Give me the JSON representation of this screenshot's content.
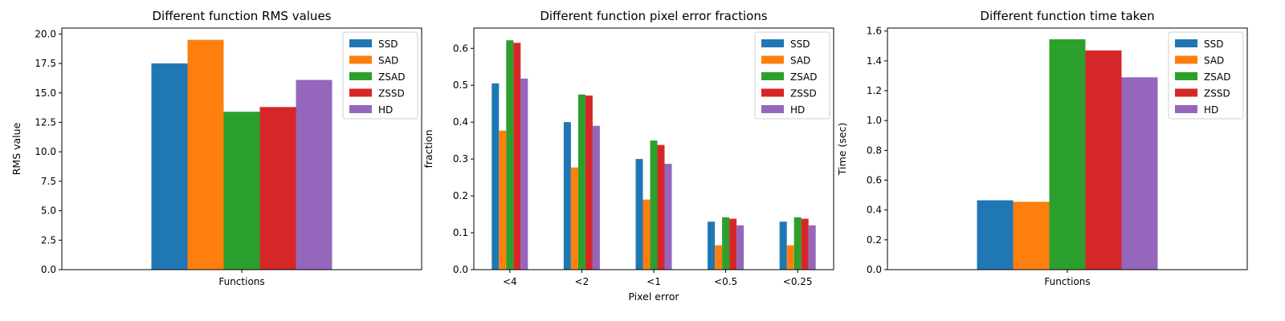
{
  "series_names": [
    "SSD",
    "SAD",
    "ZSAD",
    "ZSSD",
    "HD"
  ],
  "colors": [
    "#1f77b4",
    "#ff7f0e",
    "#2ca02c",
    "#d62728",
    "#9467bd"
  ],
  "chart_data": [
    {
      "type": "bar",
      "title": "Different function RMS values",
      "xlabel": "",
      "ylabel": "RMS value",
      "categories": [
        "Functions"
      ],
      "series": [
        {
          "name": "SSD",
          "values": [
            17.5
          ]
        },
        {
          "name": "SAD",
          "values": [
            19.5
          ]
        },
        {
          "name": "ZSAD",
          "values": [
            13.4
          ]
        },
        {
          "name": "ZSSD",
          "values": [
            13.8
          ]
        },
        {
          "name": "HD",
          "values": [
            16.1
          ]
        }
      ],
      "ylim": [
        0,
        20.5
      ],
      "yticks": [
        "0.0",
        "2.5",
        "5.0",
        "7.5",
        "10.0",
        "12.5",
        "15.0",
        "17.5",
        "20.0"
      ],
      "legend": "top-right"
    },
    {
      "type": "bar",
      "title": "Different function pixel error fractions",
      "xlabel": "Pixel error",
      "ylabel": "fraction",
      "categories": [
        "<4",
        "<2",
        "<1",
        "<0.5",
        "<0.25"
      ],
      "series": [
        {
          "name": "SSD",
          "values": [
            0.505,
            0.4,
            0.3,
            0.13,
            0.13
          ]
        },
        {
          "name": "SAD",
          "values": [
            0.377,
            0.277,
            0.19,
            0.066,
            0.066
          ]
        },
        {
          "name": "ZSAD",
          "values": [
            0.622,
            0.475,
            0.35,
            0.142,
            0.142
          ]
        },
        {
          "name": "ZSSD",
          "values": [
            0.615,
            0.472,
            0.338,
            0.138,
            0.138
          ]
        },
        {
          "name": "HD",
          "values": [
            0.518,
            0.39,
            0.287,
            0.12,
            0.12
          ]
        }
      ],
      "ylim": [
        0,
        0.655
      ],
      "yticks": [
        "0.0",
        "0.1",
        "0.2",
        "0.3",
        "0.4",
        "0.5",
        "0.6"
      ],
      "legend": "top-right"
    },
    {
      "type": "bar",
      "title": "Different function time taken",
      "xlabel": "",
      "ylabel": "Time (sec)",
      "categories": [
        "Functions"
      ],
      "series": [
        {
          "name": "SSD",
          "values": [
            0.465
          ]
        },
        {
          "name": "SAD",
          "values": [
            0.455
          ]
        },
        {
          "name": "ZSAD",
          "values": [
            1.545
          ]
        },
        {
          "name": "ZSSD",
          "values": [
            1.47
          ]
        },
        {
          "name": "HD",
          "values": [
            1.29
          ]
        }
      ],
      "ylim": [
        0,
        1.62
      ],
      "yticks": [
        "0.0",
        "0.2",
        "0.4",
        "0.6",
        "0.8",
        "1.0",
        "1.2",
        "1.4",
        "1.6"
      ],
      "legend": "top-right"
    }
  ]
}
